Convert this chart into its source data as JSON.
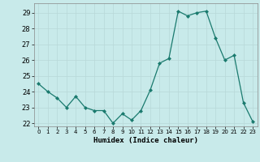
{
  "x": [
    0,
    1,
    2,
    3,
    4,
    5,
    6,
    7,
    8,
    9,
    10,
    11,
    12,
    13,
    14,
    15,
    16,
    17,
    18,
    19,
    20,
    21,
    22,
    23
  ],
  "y": [
    24.5,
    24.0,
    23.6,
    23.0,
    23.7,
    23.0,
    22.8,
    22.8,
    22.0,
    22.6,
    22.2,
    22.8,
    24.1,
    25.8,
    26.1,
    29.1,
    28.8,
    29.0,
    29.1,
    27.4,
    26.0,
    26.3,
    23.3,
    22.1
  ],
  "line_color": "#1a7a6e",
  "marker": "D",
  "marker_size": 2.0,
  "bg_color": "#c8eaea",
  "grid_color": "#b8d8d8",
  "xlabel": "Humidex (Indice chaleur)",
  "ylim": [
    21.8,
    29.6
  ],
  "yticks": [
    22,
    23,
    24,
    25,
    26,
    27,
    28,
    29
  ],
  "xticks": [
    0,
    1,
    2,
    3,
    4,
    5,
    6,
    7,
    8,
    9,
    10,
    11,
    12,
    13,
    14,
    15,
    16,
    17,
    18,
    19,
    20,
    21,
    22,
    23
  ],
  "xlim": [
    -0.5,
    23.5
  ]
}
